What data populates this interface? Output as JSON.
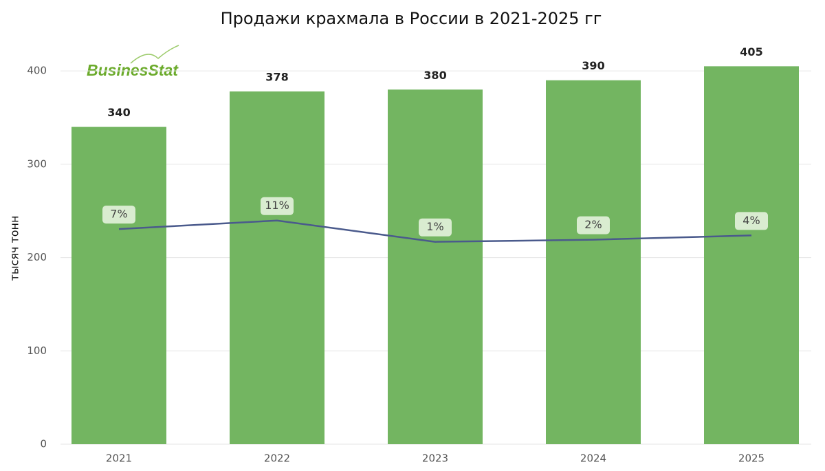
{
  "chart_data": {
    "type": "bar_line",
    "title": "Продажи крахмала в России в 2021-2025 гг",
    "y_axis_label": "тысяч тонн",
    "logo": "BusinesStat",
    "categories": [
      "2021",
      "2022",
      "2023",
      "2024",
      "2025"
    ],
    "ylim": [
      0,
      420
    ],
    "yticks": [
      0,
      100,
      200,
      300,
      400
    ],
    "grid": true,
    "y2lim": [
      -94,
      90
    ],
    "series": [
      {
        "type": "bar",
        "color": "#73b561",
        "values": [
          340,
          378,
          380,
          390,
          405
        ]
      },
      {
        "type": "line",
        "axis": "y2",
        "color": "#4a5a8c",
        "values": [
          7,
          11,
          1,
          2,
          4
        ],
        "value_labels": [
          "7%",
          "11%",
          "1%",
          "2%",
          "4%"
        ]
      }
    ]
  }
}
